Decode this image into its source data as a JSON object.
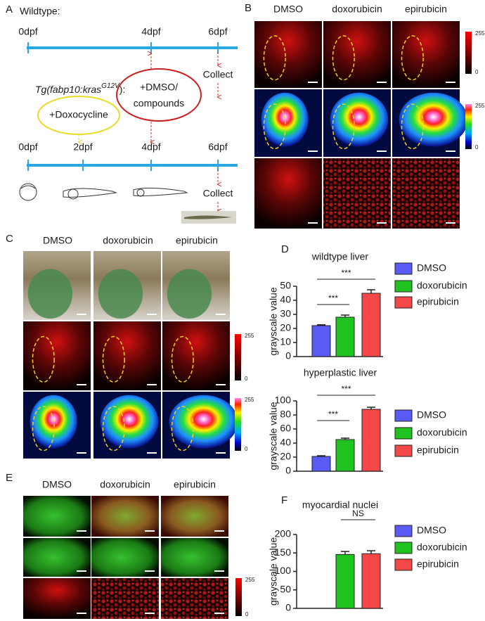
{
  "panel_labels": [
    "A",
    "B",
    "C",
    "D",
    "E",
    "F"
  ],
  "timeline": {
    "wildtype_label": "Wildtype:",
    "top_days": [
      "0dpf",
      "4dpf",
      "6dpf"
    ],
    "top_collect": "Collect",
    "transgenic_label": "Tg(fabp10:kras",
    "transgenic_superscript": "G12V",
    "transgenic_suffix": "):",
    "doxycycline": "+Doxocycline",
    "treatment": [
      "+DMSO/",
      "compounds"
    ],
    "bottom_days": [
      "0dpf",
      "2dpf",
      "4dpf",
      "6dpf"
    ],
    "bottom_collect": "Collect"
  },
  "imaging": {
    "B": {
      "columns": [
        "DMSO",
        "doxorubicin",
        "epirubicin"
      ],
      "scales": [
        [
          255,
          0
        ],
        [
          255,
          0
        ]
      ]
    },
    "C": {
      "columns": [
        "DMSO",
        "doxorubicin",
        "epirubicin"
      ],
      "scales": [
        [
          255,
          0
        ],
        [
          255,
          0
        ]
      ]
    },
    "E": {
      "columns": [
        "DMSO",
        "doxorubicin",
        "epirubicin"
      ],
      "scales": [
        [
          255,
          0
        ]
      ]
    }
  },
  "chart_data": [
    {
      "type": "bar",
      "title": "wildtype liver",
      "y_label": "grayscale value",
      "categories": [
        "DMSO",
        "doxorubicin",
        "epirubicin"
      ],
      "colors": [
        "#5a5af5",
        "#1fc21f",
        "#f44848"
      ],
      "values": [
        22,
        28,
        45
      ],
      "errors": [
        0.6,
        1.5,
        2.5
      ],
      "ylim": [
        0,
        50
      ],
      "yticks": [
        0,
        10,
        20,
        30,
        40,
        50
      ],
      "annotations": [
        "***",
        "***"
      ]
    },
    {
      "type": "bar",
      "title": "hyperplastic liver",
      "y_label": "grayscale value",
      "categories": [
        "DMSO",
        "doxorubicin",
        "epirubicin"
      ],
      "colors": [
        "#5a5af5",
        "#1fc21f",
        "#f44848"
      ],
      "values": [
        21,
        45,
        88
      ],
      "errors": [
        1,
        2,
        3
      ],
      "ylim": [
        0,
        100
      ],
      "yticks": [
        0,
        20,
        40,
        60,
        80,
        100
      ],
      "annotations": [
        "***",
        "***"
      ]
    },
    {
      "type": "bar",
      "title": "myocardial nuclei",
      "y_label": "grayscale value",
      "categories": [
        "DMSO",
        "doxorubicin",
        "epirubicin"
      ],
      "colors": [
        "#5a5af5",
        "#1fc21f",
        "#f44848"
      ],
      "values": [
        null,
        146,
        148
      ],
      "errors": [
        null,
        8,
        8
      ],
      "ylim": [
        0,
        200
      ],
      "yticks": [
        0,
        50,
        100,
        150,
        200
      ],
      "annotations": [
        "NS"
      ]
    }
  ]
}
